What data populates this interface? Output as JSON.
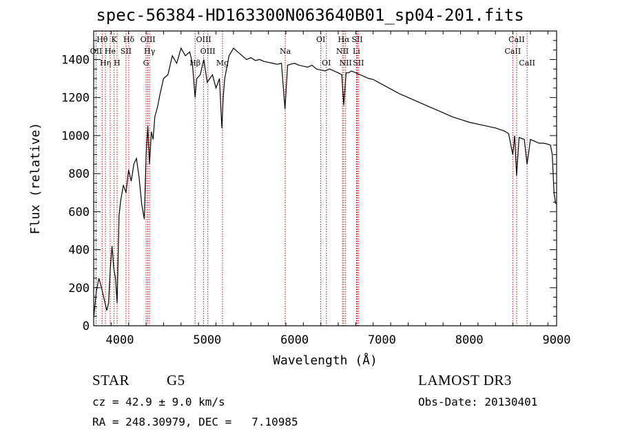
{
  "chart_data": {
    "type": "line",
    "title": "spec-56384-HD163300N063640B01_sp04-201.fits",
    "xlabel": "Wavelength (Å)",
    "ylabel": "Flux (relative)",
    "xlim": [
      3700,
      9000
    ],
    "ylim": [
      0,
      1550
    ],
    "xticks": [
      4000,
      5000,
      6000,
      7000,
      8000,
      9000
    ],
    "yticks": [
      0,
      200,
      400,
      600,
      800,
      1000,
      1200,
      1400
    ],
    "grid": false,
    "series": [
      {
        "x": [
          3700,
          3730,
          3760,
          3790,
          3820,
          3850,
          3870,
          3890,
          3910,
          3930,
          3950,
          3968,
          3990,
          4010,
          4040,
          4070,
          4100,
          4130,
          4160,
          4190,
          4220,
          4250,
          4280,
          4300,
          4320,
          4340,
          4360,
          4380,
          4400,
          4430,
          4460,
          4500,
          4550,
          4600,
          4650,
          4700,
          4750,
          4800,
          4830,
          4861,
          4880,
          4920,
          4960,
          5000,
          5030,
          5060,
          5100,
          5140,
          5167,
          5183,
          5200,
          5250,
          5300,
          5350,
          5400,
          5450,
          5500,
          5550,
          5600,
          5650,
          5700,
          5750,
          5800,
          5850,
          5890,
          5920,
          5950,
          6000,
          6050,
          6100,
          6150,
          6200,
          6250,
          6300,
          6350,
          6400,
          6450,
          6500,
          6540,
          6563,
          6590,
          6620,
          6650,
          6700,
          6750,
          6800,
          6850,
          6900,
          7000,
          7100,
          7200,
          7300,
          7400,
          7500,
          7600,
          7700,
          7800,
          7900,
          8000,
          8100,
          8200,
          8300,
          8400,
          8450,
          8498,
          8520,
          8542,
          8570,
          8600,
          8630,
          8662,
          8700,
          8750,
          8800,
          8850,
          8900,
          8930,
          8950,
          8970,
          8990
        ],
        "y": [
          40,
          180,
          250,
          200,
          140,
          80,
          120,
          300,
          420,
          300,
          250,
          120,
          580,
          660,
          740,
          700,
          820,
          760,
          850,
          880,
          780,
          640,
          560,
          900,
          1050,
          850,
          1020,
          980,
          1100,
          1150,
          1220,
          1300,
          1320,
          1420,
          1380,
          1460,
          1420,
          1440,
          1380,
          1200,
          1300,
          1320,
          1400,
          1280,
          1300,
          1320,
          1250,
          1300,
          1040,
          1200,
          1300,
          1420,
          1460,
          1440,
          1420,
          1400,
          1410,
          1395,
          1400,
          1390,
          1385,
          1380,
          1375,
          1380,
          1140,
          1370,
          1375,
          1380,
          1370,
          1365,
          1360,
          1370,
          1350,
          1345,
          1340,
          1350,
          1340,
          1330,
          1320,
          1160,
          1330,
          1330,
          1340,
          1330,
          1320,
          1310,
          1300,
          1295,
          1270,
          1245,
          1220,
          1200,
          1180,
          1160,
          1140,
          1120,
          1100,
          1085,
          1070,
          1060,
          1050,
          1040,
          1025,
          1010,
          900,
          1000,
          790,
          990,
          985,
          980,
          850,
          980,
          970,
          960,
          960,
          955,
          950,
          900,
          700,
          640
        ]
      }
    ],
    "lines": [
      {
        "label": "Hθ",
        "x": 3797,
        "row": 0
      },
      {
        "label": "OII",
        "x": 3727,
        "row": 1
      },
      {
        "label": "Hη",
        "x": 3835,
        "row": 2
      },
      {
        "label": "He",
        "x": 3889,
        "row": 1
      },
      {
        "label": "K",
        "x": 3934,
        "row": 0
      },
      {
        "label": "H",
        "x": 3968,
        "row": 2
      },
      {
        "label": "SII",
        "x": 4070,
        "row": 1
      },
      {
        "label": "Hδ",
        "x": 4102,
        "row": 0
      },
      {
        "label": "OIII",
        "x": 4320,
        "row": 0
      },
      {
        "label": "Hγ",
        "x": 4340,
        "row": 1
      },
      {
        "label": "G",
        "x": 4300,
        "row": 2
      },
      {
        "label": "OIII",
        "x": 4959,
        "row": 0
      },
      {
        "label": "OIII",
        "x": 5007,
        "row": 1
      },
      {
        "label": "Hβ",
        "x": 4861,
        "row": 2
      },
      {
        "label": "Mg",
        "x": 5175,
        "row": 2
      },
      {
        "label": "Na",
        "x": 5893,
        "row": 1
      },
      {
        "label": "OI",
        "x": 6300,
        "row": 0
      },
      {
        "label": "OI",
        "x": 6364,
        "row": 2
      },
      {
        "label": "Hα",
        "x": 6563,
        "row": 0
      },
      {
        "label": "NII",
        "x": 6548,
        "row": 1
      },
      {
        "label": "NII",
        "x": 6584,
        "row": 2
      },
      {
        "label": "SII",
        "x": 6717,
        "row": 0
      },
      {
        "label": "Li",
        "x": 6708,
        "row": 1
      },
      {
        "label": "SII",
        "x": 6731,
        "row": 2
      },
      {
        "label": "CaII",
        "x": 8542,
        "row": 0
      },
      {
        "label": "CaII",
        "x": 8498,
        "row": 1
      },
      {
        "label": "CaII",
        "x": 8662,
        "row": 2
      }
    ]
  },
  "info": {
    "object_class": "STAR",
    "subclass": "G5",
    "survey": "LAMOST DR3",
    "redshift": "cz = 42.9 ± 9.0 km/s",
    "obs_date": "Obs-Date: 20130401",
    "coords": "RA = 248.30979, DEC =   7.10985"
  },
  "colors": {
    "line": "#000000",
    "marker": "#cc0000"
  }
}
